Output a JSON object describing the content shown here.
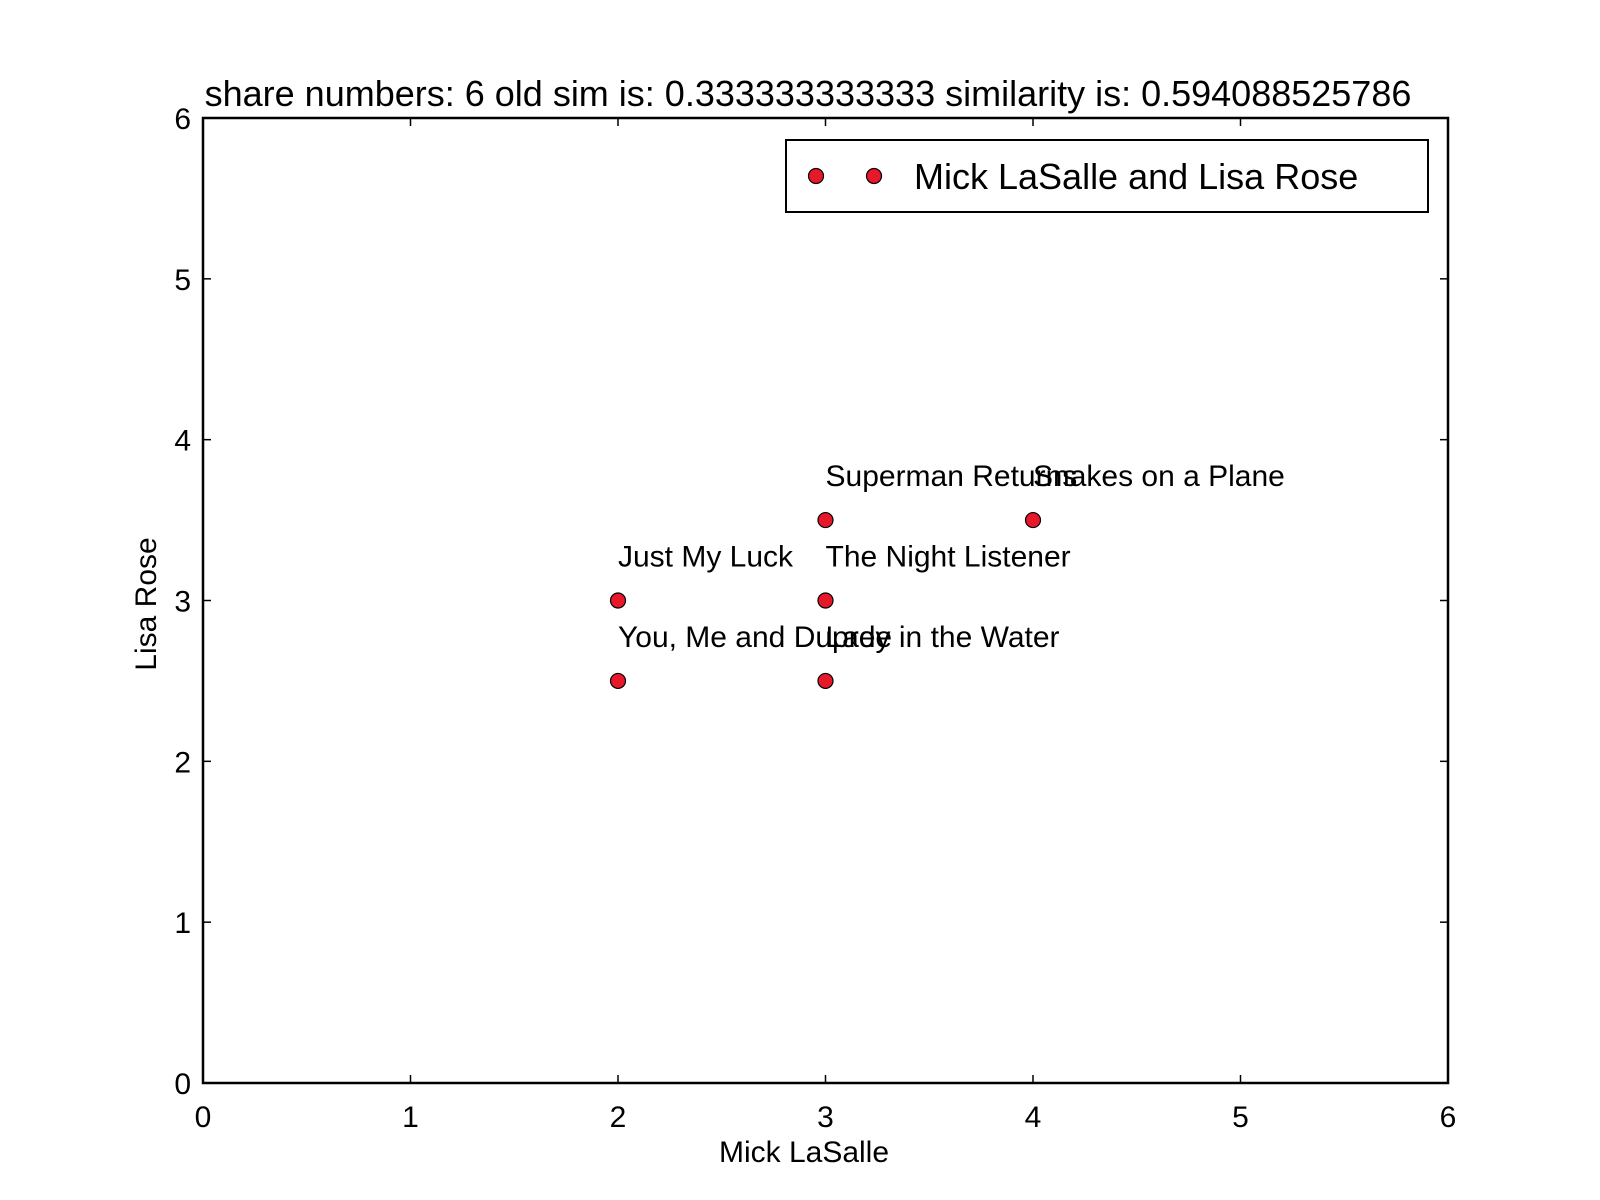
{
  "chart_data": {
    "type": "scatter",
    "title": "share numbers: 6 old sim is: 0.333333333333 similarity is: 0.594088525786",
    "xlabel": "Mick LaSalle",
    "ylabel": "Lisa Rose",
    "xlim": [
      0,
      6
    ],
    "ylim": [
      0,
      6
    ],
    "xticks": [
      "0",
      "1",
      "2",
      "3",
      "4",
      "5",
      "6"
    ],
    "yticks": [
      "0",
      "1",
      "2",
      "3",
      "4",
      "5",
      "6"
    ],
    "grid": false,
    "legend_position": "top-right",
    "marker_color": "#e8182b",
    "series": [
      {
        "name": "Mick LaSalle and Lisa Rose",
        "points": [
          {
            "x": 3,
            "y": 3.5,
            "label": "Superman Returns"
          },
          {
            "x": 4,
            "y": 3.5,
            "label": "Snakes on a Plane"
          },
          {
            "x": 2,
            "y": 3,
            "label": "Just My Luck"
          },
          {
            "x": 3,
            "y": 3,
            "label": "The Night Listener"
          },
          {
            "x": 2,
            "y": 2.5,
            "label": "You, Me and Dupree"
          },
          {
            "x": 3,
            "y": 2.5,
            "label": "Lady in the Water"
          }
        ]
      }
    ]
  }
}
